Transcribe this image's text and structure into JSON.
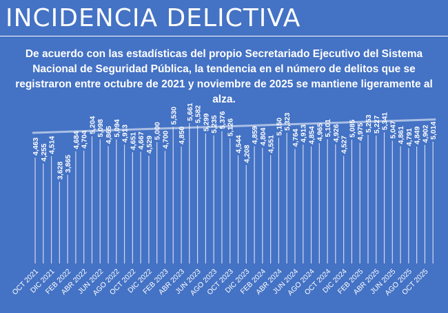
{
  "header": {
    "title": "INCIDENCIA DELICTIVA",
    "description": "De acuerdo con las estadísticas del propio Secretariado Ejecutivo del Sistema Nacional de Seguridad Pública, la tendencia en el número de delitos que se registraron entre octubre de 2021 y noviembre de 2025 se mantiene ligeramente al alza."
  },
  "colors": {
    "background": "#4472c4",
    "marks": "#ffffff"
  },
  "chart_data": {
    "type": "bar",
    "title": "",
    "xlabel": "",
    "ylabel": "",
    "trendline": "linear",
    "values": [
      4463,
      4255,
      4514,
      3628,
      3865,
      4684,
      4704,
      5204,
      5098,
      4865,
      5094,
      4913,
      4651,
      4667,
      4529,
      5000,
      4700,
      5530,
      4850,
      5661,
      5582,
      5299,
      5235,
      5376,
      5126,
      4544,
      4208,
      4859,
      4804,
      4551,
      5150,
      5323,
      4764,
      4913,
      4854,
      4965,
      5101,
      4926,
      4527,
      5085,
      4975,
      5253,
      5227,
      5341,
      5047,
      4861,
      4791,
      4849,
      4902,
      5014
    ],
    "data_labels": [
      "4,463",
      "4,255",
      "4,514",
      "3,628",
      "3,865",
      "4,684",
      "4,704",
      "5,204",
      "5,098",
      "4,865",
      "5,094",
      "4,913",
      "4,651",
      "4,667",
      "4,529",
      "5,000",
      "4,700",
      "5,530",
      "4,850",
      "5,661",
      "5,582",
      "5,299",
      "5,235",
      "5,376",
      "5,126",
      "4,544",
      "4,208",
      "4,859",
      "4,804",
      "4,551",
      "5,150",
      "5,323",
      "4,764",
      "4,913",
      "4,854",
      "4,965",
      "5,101",
      "4,926",
      "4,527",
      "5,085",
      "4,975",
      "5,253",
      "5,227",
      "5,341",
      "5,047",
      "4,861",
      "4,791",
      "4,849",
      "4,902",
      "5,014"
    ],
    "tick_labels": [
      "OCT 2021",
      "DIC 2021",
      "FEB 2022",
      "ABR 2022",
      "JUN 2022",
      "AGO 2022",
      "OCT 2022",
      "DIC 2022",
      "FEB 2023",
      "ABR 2023",
      "JUN 2023",
      "AGO 2023",
      "OCT 2023",
      "DIC 2023",
      "FEB 2024",
      "ABR 2024",
      "JUN 2024",
      "AGO 2024",
      "OCT 2024",
      "DIC 2024",
      "FEB 2025",
      "ABR 2025",
      "JUN 2025",
      "AGO 2025",
      "OCT 2025"
    ],
    "ylim": [
      800,
      6000
    ]
  }
}
